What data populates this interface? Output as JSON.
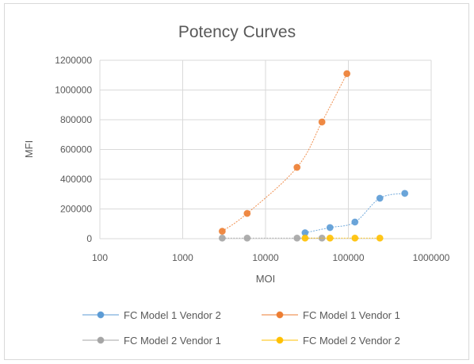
{
  "chart_data": {
    "type": "scatter",
    "title": "Potency Curves",
    "xlabel": "MOI",
    "ylabel": "MFI",
    "x_scale": "log",
    "xlim": [
      100,
      1000000
    ],
    "ylim": [
      0,
      1200000
    ],
    "x_ticks": [
      "100",
      "1000",
      "10000",
      "100000",
      "1000000"
    ],
    "y_ticks": [
      "0",
      "200000",
      "400000",
      "600000",
      "800000",
      "1000000",
      "1200000"
    ],
    "grid": true,
    "legend_position": "bottom",
    "series": [
      {
        "name": "FC Model 1 Vendor 2",
        "color": "#5b9bd5",
        "x": [
          30000,
          60000,
          120000,
          240000,
          480000
        ],
        "y": [
          40000,
          75000,
          112000,
          272000,
          305000
        ]
      },
      {
        "name": "FC Model 1 Vendor 1",
        "color": "#ed7d31",
        "x": [
          3000,
          6000,
          24000,
          48000,
          96000
        ],
        "y": [
          50000,
          170000,
          480000,
          785000,
          1110000
        ]
      },
      {
        "name": "FC Model 2 Vendor 1",
        "color": "#a5a5a5",
        "x": [
          3000,
          6000,
          24000,
          48000
        ],
        "y": [
          4000,
          4000,
          4000,
          4000
        ]
      },
      {
        "name": "FC Model 2 Vendor 2",
        "color": "#ffc000",
        "x": [
          30000,
          60000,
          120000,
          240000
        ],
        "y": [
          4000,
          4000,
          4000,
          4000
        ]
      }
    ]
  }
}
